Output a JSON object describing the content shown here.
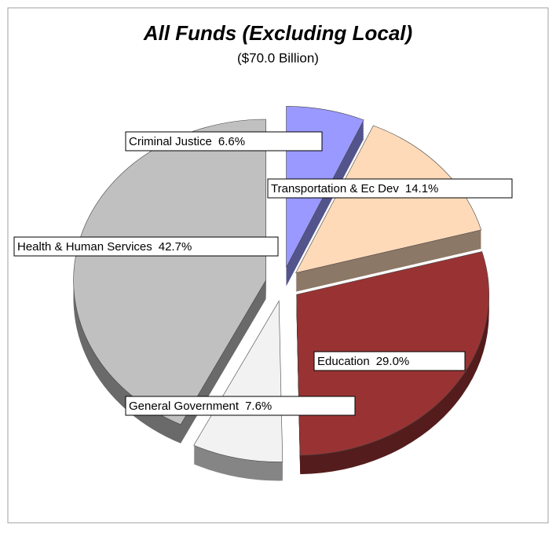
{
  "chart_data": {
    "type": "pie",
    "title": "All Funds (Excluding Local)",
    "subtitle": "($70.0  Billion)",
    "categories": [
      "Criminal Justice",
      "Transportation & Ec Dev",
      "Education",
      "General Government",
      "Health & Human Services"
    ],
    "values": [
      6.6,
      14.1,
      29.0,
      7.6,
      42.7
    ],
    "value_labels": [
      "6.6%",
      "14.1%",
      "29.0%",
      "7.6%",
      "42.7%"
    ],
    "colors": [
      "#9999ff",
      "#ffdab9",
      "#993333",
      "#f2f2f2",
      "#c0c0c0"
    ]
  }
}
